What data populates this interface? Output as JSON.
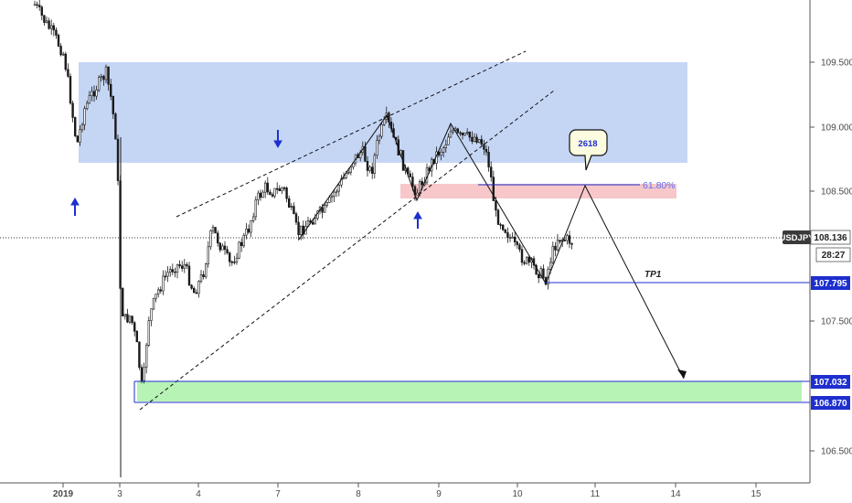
{
  "chart_data": {
    "type": "candlestick",
    "x_ticks": [
      "2019",
      "3",
      "4",
      "7",
      "8",
      "9",
      "10",
      "11",
      "14",
      "15"
    ],
    "y_ticks": [
      "109.500",
      "109.000",
      "108.500",
      "107.500",
      "106.500"
    ],
    "ylim": [
      106.42,
      110.08
    ],
    "symbol": "USDJPY",
    "last_price": "108.136",
    "countdown": "28:27",
    "level_tags": [
      {
        "label": "107.795",
        "value": 107.795
      },
      {
        "label": "107.032",
        "value": 107.032
      },
      {
        "label": "106.870",
        "value": 106.87
      }
    ],
    "fib_label": "61.80%",
    "fib_value": 108.54,
    "callout_label": "2618",
    "tp_label": "TP1",
    "zones": [
      {
        "name": "supply-zone",
        "y_top": 109.47,
        "y_bottom": 108.71,
        "color": "#c5d6f5"
      },
      {
        "name": "fib-zone",
        "y_top": 108.54,
        "y_bottom": 108.44,
        "color": "#f7c7c9"
      },
      {
        "name": "demand-zone",
        "y_top": 107.032,
        "y_bottom": 106.87,
        "color": "#b7f3b4"
      }
    ],
    "grid": false,
    "colors": {
      "candle": "#1a1a1a",
      "tag": "#1e2fcf",
      "symbol_tag": "#3a3a3a",
      "arrow_blue": "#1e2fcf",
      "fib_text": "#5c6cf0"
    }
  }
}
